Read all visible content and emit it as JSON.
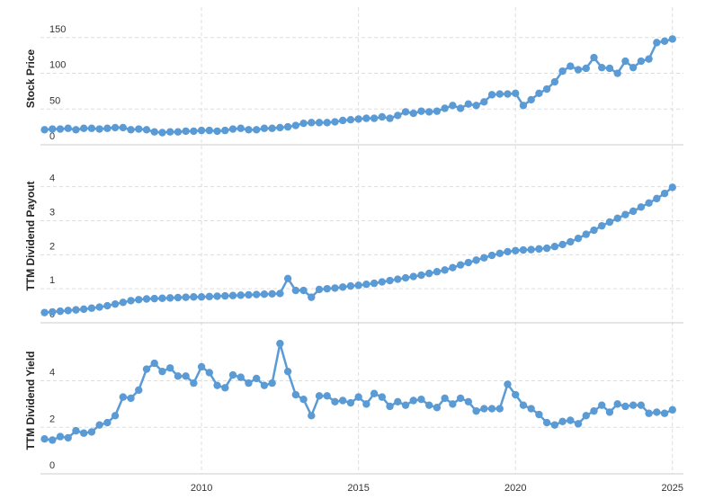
{
  "chart_data": {
    "type": "line",
    "x": [
      2005,
      2005.25,
      2005.5,
      2005.75,
      2006,
      2006.25,
      2006.5,
      2006.75,
      2007,
      2007.25,
      2007.5,
      2007.75,
      2008,
      2008.25,
      2008.5,
      2008.75,
      2009,
      2009.25,
      2009.5,
      2009.75,
      2010,
      2010.25,
      2010.5,
      2010.75,
      2011,
      2011.25,
      2011.5,
      2011.75,
      2012,
      2012.25,
      2012.5,
      2012.75,
      2013,
      2013.25,
      2013.5,
      2013.75,
      2014,
      2014.25,
      2014.5,
      2014.75,
      2015,
      2015.25,
      2015.5,
      2015.75,
      2016,
      2016.25,
      2016.5,
      2016.75,
      2017,
      2017.25,
      2017.5,
      2017.75,
      2018,
      2018.25,
      2018.5,
      2018.75,
      2019,
      2019.25,
      2019.5,
      2019.75,
      2020,
      2020.25,
      2020.5,
      2020.75,
      2021,
      2021.25,
      2021.5,
      2021.75,
      2022,
      2022.25,
      2022.5,
      2022.75,
      2023,
      2023.25,
      2023.5,
      2023.75,
      2024,
      2024.25,
      2024.5,
      2024.75,
      2025
    ],
    "xlim": [
      2004.87,
      2025.35
    ],
    "xticks": [
      2010,
      2015,
      2020,
      2025
    ],
    "grid": true,
    "panels": [
      {
        "ylabel": "Stock Price",
        "color": "#5b9bd5",
        "ylim": [
          0,
          185
        ],
        "yticks": [
          0,
          50,
          100,
          150
        ],
        "values": [
          21,
          22,
          22,
          23,
          21,
          23,
          23,
          22,
          23,
          24,
          24,
          21,
          22,
          21,
          18,
          17,
          18,
          18,
          19,
          19,
          20,
          20,
          19,
          20,
          22,
          23,
          21,
          21,
          23,
          23,
          24,
          25,
          27,
          30,
          31,
          31,
          31,
          32,
          34,
          35,
          36,
          37,
          37,
          39,
          37,
          41,
          46,
          44,
          47,
          46,
          47,
          51,
          55,
          51,
          57,
          55,
          60,
          70,
          71,
          71,
          72,
          55,
          63,
          72,
          78,
          88,
          103,
          110,
          105,
          107,
          122,
          108,
          107,
          100,
          117,
          108,
          117,
          120,
          143,
          145,
          148
        ]
      },
      {
        "ylabel": "TTM Dividend Payout",
        "color": "#5b9bd5",
        "ylim": [
          0,
          5.1
        ],
        "yticks": [
          0,
          1,
          2,
          3,
          4
        ],
        "values": [
          0.3,
          0.32,
          0.34,
          0.36,
          0.38,
          0.4,
          0.43,
          0.46,
          0.5,
          0.55,
          0.6,
          0.65,
          0.68,
          0.7,
          0.71,
          0.72,
          0.73,
          0.74,
          0.75,
          0.76,
          0.76,
          0.77,
          0.78,
          0.79,
          0.8,
          0.81,
          0.82,
          0.83,
          0.84,
          0.85,
          0.86,
          1.3,
          0.95,
          0.95,
          0.75,
          0.98,
          1.0,
          1.02,
          1.05,
          1.08,
          1.1,
          1.13,
          1.16,
          1.2,
          1.24,
          1.28,
          1.32,
          1.36,
          1.4,
          1.45,
          1.5,
          1.55,
          1.62,
          1.7,
          1.77,
          1.84,
          1.91,
          1.98,
          2.04,
          2.09,
          2.12,
          2.14,
          2.15,
          2.17,
          2.19,
          2.24,
          2.3,
          2.38,
          2.48,
          2.6,
          2.72,
          2.85,
          2.96,
          3.07,
          3.18,
          3.28,
          3.4,
          3.52,
          3.65,
          3.8,
          3.98
        ]
      },
      {
        "ylabel": "TTM Dividend Yield",
        "color": "#5b9bd5",
        "ylim": [
          0,
          6.3
        ],
        "yticks": [
          0,
          2,
          4
        ],
        "values": [
          1.5,
          1.45,
          1.6,
          1.55,
          1.85,
          1.75,
          1.8,
          2.1,
          2.2,
          2.5,
          3.3,
          3.25,
          3.6,
          4.5,
          4.75,
          4.4,
          4.55,
          4.2,
          4.2,
          3.9,
          4.6,
          4.35,
          3.8,
          3.7,
          4.25,
          4.15,
          3.9,
          4.1,
          3.8,
          3.9,
          5.6,
          4.4,
          3.4,
          3.2,
          2.5,
          3.35,
          3.35,
          3.1,
          3.15,
          3.05,
          3.3,
          3.0,
          3.45,
          3.3,
          2.9,
          3.1,
          2.95,
          3.15,
          3.2,
          2.95,
          2.85,
          3.25,
          3.0,
          3.25,
          3.1,
          2.7,
          2.8,
          2.8,
          2.8,
          3.85,
          3.4,
          2.95,
          2.8,
          2.55,
          2.2,
          2.1,
          2.25,
          2.3,
          2.15,
          2.5,
          2.7,
          2.95,
          2.65,
          3.0,
          2.9,
          2.95,
          2.95,
          2.6,
          2.65,
          2.6,
          2.75
        ]
      }
    ]
  }
}
